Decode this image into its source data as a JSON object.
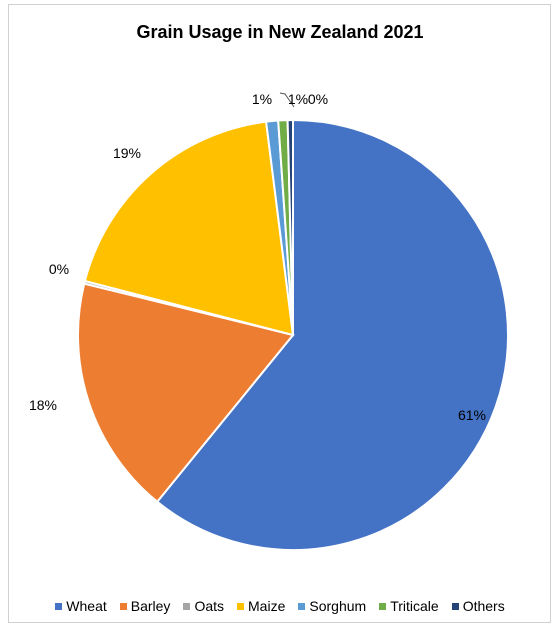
{
  "chart_data": {
    "type": "pie",
    "title": "Grain Usage in New Zealand 2021",
    "categories": [
      "Wheat",
      "Barley",
      "Oats",
      "Maize",
      "Sorghum",
      "Triticale",
      "Others"
    ],
    "values": [
      61,
      18,
      0.2,
      19,
      0.9,
      0.7,
      0.4
    ],
    "data_labels": [
      "61%",
      "18%",
      "0%",
      "19%",
      "1%",
      "1%",
      "0%"
    ],
    "colors": [
      "#4472C4",
      "#ED7D31",
      "#A5A5A5",
      "#FFC000",
      "#5B9BD5",
      "#70AD47",
      "#264478"
    ],
    "legend_position": "bottom",
    "start_angle_deg": 0,
    "direction": "clockwise"
  }
}
